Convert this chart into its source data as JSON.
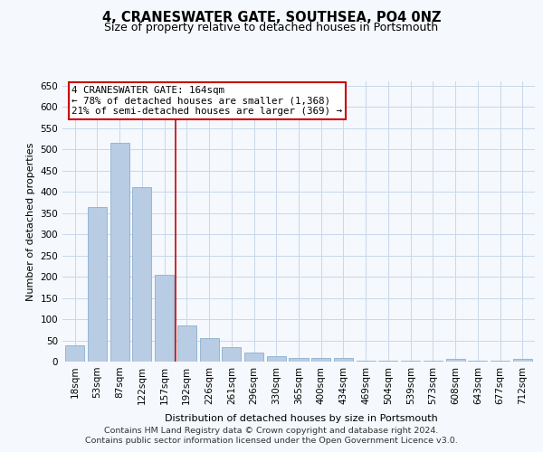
{
  "title": "4, CRANESWATER GATE, SOUTHSEA, PO4 0NZ",
  "subtitle": "Size of property relative to detached houses in Portsmouth",
  "xlabel": "Distribution of detached houses by size in Portsmouth",
  "ylabel": "Number of detached properties",
  "categories": [
    "18sqm",
    "53sqm",
    "87sqm",
    "122sqm",
    "157sqm",
    "192sqm",
    "226sqm",
    "261sqm",
    "296sqm",
    "330sqm",
    "365sqm",
    "400sqm",
    "434sqm",
    "469sqm",
    "504sqm",
    "539sqm",
    "573sqm",
    "608sqm",
    "643sqm",
    "677sqm",
    "712sqm"
  ],
  "values": [
    38,
    365,
    515,
    410,
    205,
    85,
    55,
    35,
    22,
    12,
    8,
    8,
    8,
    3,
    3,
    3,
    3,
    6,
    3,
    3,
    6
  ],
  "bar_color": "#b8cce4",
  "bar_edge_color": "#7da6c8",
  "background_color": "#f5f8fc",
  "grid_color": "#c8d8ea",
  "red_line_x": 4.5,
  "annotation_line1": "4 CRANESWATER GATE: 164sqm",
  "annotation_line2": "← 78% of detached houses are smaller (1,368)",
  "annotation_line3": "21% of semi-detached houses are larger (369) →",
  "annotation_box_color": "#ffffff",
  "annotation_box_edge": "#cc0000",
  "footer1": "Contains HM Land Registry data © Crown copyright and database right 2024.",
  "footer2": "Contains public sector information licensed under the Open Government Licence v3.0.",
  "ylim": [
    0,
    660
  ],
  "yticks": [
    0,
    50,
    100,
    150,
    200,
    250,
    300,
    350,
    400,
    450,
    500,
    550,
    600,
    650
  ],
  "title_fontsize": 10.5,
  "subtitle_fontsize": 9,
  "axis_label_fontsize": 8,
  "tick_fontsize": 7.5,
  "footer_fontsize": 6.8,
  "annotation_fontsize": 7.8
}
